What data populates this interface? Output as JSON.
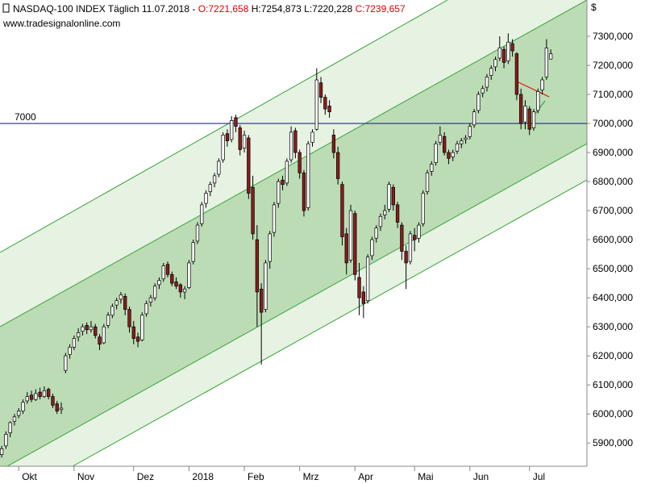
{
  "chart_data": {
    "type": "candlestick",
    "title": "NASDAQ-100 INDEX Täglich  11.07.2018 -",
    "ohlc_labels": [
      "O:7221,658",
      "H:7254,873",
      "L:7220,228",
      "C:7239,657"
    ],
    "source": "www.tradesignalonline.com",
    "currency": "$",
    "hline": 7000,
    "up_color": "#ffffff",
    "down_color": "#8b1c1c",
    "xlim": [
      -0.4,
      137.5
    ],
    "xticks": [
      {
        "value": 4,
        "label": "Okt"
      },
      {
        "value": 17,
        "label": "Nov"
      },
      {
        "value": 31,
        "label": "Dez"
      },
      {
        "value": 44,
        "label": "2018"
      },
      {
        "value": 57,
        "label": "Feb"
      },
      {
        "value": 70,
        "label": "Mrz"
      },
      {
        "value": 83,
        "label": "Apr"
      },
      {
        "value": 97,
        "label": "Mai"
      },
      {
        "value": 110,
        "label": "Jun"
      },
      {
        "value": 124,
        "label": "Jul"
      }
    ],
    "ylim": [
      5820,
      7425
    ],
    "yticks": [
      {
        "value": 5900,
        "label": "5900,000"
      },
      {
        "value": 6000,
        "label": "6000,000"
      },
      {
        "value": 6100,
        "label": "6100,000"
      },
      {
        "value": 6200,
        "label": "6200,000"
      },
      {
        "value": 6300,
        "label": "6300,000"
      },
      {
        "value": 6400,
        "label": "6400,000"
      },
      {
        "value": 6500,
        "label": "6500,000"
      },
      {
        "value": 6600,
        "label": "6600,000"
      },
      {
        "value": 6700,
        "label": "6700,000"
      },
      {
        "value": 6800,
        "label": "6800,000"
      },
      {
        "value": 6900,
        "label": "6900,000"
      },
      {
        "value": 7000,
        "label": "7000,000"
      },
      {
        "value": 7100,
        "label": "7100,000"
      },
      {
        "value": 7200,
        "label": "7200,000"
      },
      {
        "value": 7300,
        "label": "7300,000"
      }
    ],
    "open": [
      5860,
      5890,
      5935,
      5975,
      5995,
      6010,
      6045,
      6065,
      6050,
      6075,
      6060,
      6085,
      6060,
      6035,
      6015,
      6150,
      6205,
      6230,
      6265,
      6285,
      6305,
      6290,
      6300,
      6265,
      6245,
      6305,
      6340,
      6375,
      6395,
      6405,
      6360,
      6300,
      6265,
      6255,
      6345,
      6385,
      6400,
      6445,
      6465,
      6515,
      6480,
      6455,
      6445,
      6420,
      6435,
      6525,
      6595,
      6655,
      6725,
      6765,
      6795,
      6825,
      6875,
      6965,
      6945,
      7020,
      6985,
      6915,
      6950,
      6780,
      6600,
      6430,
      6360,
      6525,
      6625,
      6725,
      6805,
      6795,
      6875,
      6975,
      6900,
      6830,
      6710,
      6935,
      6980,
      7140,
      7090,
      7060,
      6960,
      6900,
      6790,
      6620,
      6530,
      6690,
      6470,
      6420,
      6390,
      6545,
      6605,
      6645,
      6685,
      6705,
      6780,
      6720,
      6650,
      6560,
      6525,
      6615,
      6605,
      6655,
      6765,
      6835,
      6865,
      6935,
      6955,
      6900,
      6885,
      6905,
      6930,
      6945,
      6955,
      6995,
      7045,
      7105,
      7125,
      7165,
      7195,
      7225,
      7255,
      7215,
      7275,
      7240,
      7100,
      7005,
      7050,
      6985,
      7045,
      7115,
      7160,
      7221.658
    ],
    "high": [
      5890,
      5940,
      5975,
      6000,
      6020,
      6050,
      6075,
      6080,
      6085,
      6090,
      6095,
      6090,
      6070,
      6045,
      6040,
      6210,
      6240,
      6270,
      6295,
      6310,
      6315,
      6320,
      6310,
      6275,
      6310,
      6350,
      6380,
      6400,
      6420,
      6415,
      6370,
      6320,
      6280,
      6350,
      6390,
      6410,
      6450,
      6470,
      6520,
      6525,
      6490,
      6470,
      6450,
      6440,
      6530,
      6600,
      6660,
      6730,
      6770,
      6800,
      6830,
      6880,
      6970,
      6980,
      7025,
      7030,
      6995,
      6975,
      6960,
      6820,
      6650,
      6450,
      6530,
      6630,
      6730,
      6810,
      6820,
      6880,
      6990,
      6985,
      6910,
      6840,
      6940,
      6980,
      7190,
      7160,
      7100,
      7080,
      6980,
      6920,
      6800,
      6640,
      6720,
      6700,
      6520,
      6440,
      6550,
      6610,
      6650,
      6690,
      6720,
      6800,
      6790,
      6730,
      6660,
      6580,
      6630,
      6640,
      6660,
      6770,
      6840,
      6870,
      6940,
      6990,
      6970,
      6910,
      6910,
      6940,
      6950,
      6960,
      7000,
      7050,
      7110,
      7130,
      7170,
      7200,
      7230,
      7300,
      7265,
      7310,
      7290,
      7245,
      7120,
      7080,
      7060,
      7050,
      7120,
      7160,
      7290,
      7254.873
    ],
    "low": [
      5850,
      5880,
      5920,
      5960,
      5985,
      6000,
      6035,
      6040,
      6045,
      6050,
      6055,
      6050,
      6020,
      6000,
      6000,
      6140,
      6190,
      6220,
      6250,
      6270,
      6275,
      6280,
      6260,
      6220,
      6240,
      6295,
      6330,
      6360,
      6380,
      6340,
      6280,
      6240,
      6230,
      6250,
      6335,
      6370,
      6390,
      6430,
      6455,
      6470,
      6440,
      6430,
      6400,
      6395,
      6430,
      6515,
      6585,
      6645,
      6710,
      6750,
      6780,
      6815,
      6865,
      6920,
      6935,
      6970,
      6890,
      6900,
      6740,
      6600,
      6300,
      6170,
      6350,
      6500,
      6610,
      6710,
      6770,
      6785,
      6865,
      6880,
      6810,
      6680,
      6700,
      6920,
      6975,
      7070,
      7030,
      7020,
      6880,
      6790,
      6580,
      6480,
      6520,
      6460,
      6340,
      6330,
      6380,
      6530,
      6590,
      6630,
      6670,
      6695,
      6700,
      6640,
      6530,
      6430,
      6515,
      6560,
      6590,
      6645,
      6755,
      6820,
      6855,
      6925,
      6890,
      6860,
      6870,
      6895,
      6915,
      6930,
      6945,
      6985,
      7035,
      7090,
      7110,
      7150,
      7180,
      7215,
      7190,
      7205,
      7230,
      7080,
      6980,
      6980,
      6960,
      6975,
      7035,
      7100,
      7150,
      7220.228
    ],
    "close": [
      5880,
      5930,
      5970,
      5990,
      6010,
      6040,
      6060,
      6050,
      6070,
      6060,
      6080,
      6060,
      6030,
      6010,
      6020,
      6200,
      6230,
      6260,
      6280,
      6300,
      6290,
      6300,
      6270,
      6240,
      6300,
      6340,
      6370,
      6390,
      6410,
      6360,
      6300,
      6260,
      6250,
      6340,
      6380,
      6400,
      6440,
      6460,
      6510,
      6480,
      6450,
      6440,
      6420,
      6430,
      6520,
      6590,
      6650,
      6720,
      6760,
      6790,
      6820,
      6870,
      6960,
      6940,
      7010,
      6990,
      6910,
      6960,
      6760,
      6620,
      6420,
      6350,
      6520,
      6620,
      6720,
      6800,
      6790,
      6870,
      6970,
      6900,
      6830,
      6700,
      6930,
      6970,
      7150,
      7090,
      7050,
      7040,
      6900,
      6810,
      6610,
      6520,
      6700,
      6480,
      6400,
      6380,
      6540,
      6600,
      6640,
      6680,
      6700,
      6790,
      6720,
      6660,
      6560,
      6520,
      6620,
      6600,
      6650,
      6760,
      6830,
      6860,
      6930,
      6960,
      6900,
      6880,
      6900,
      6930,
      6940,
      6950,
      6990,
      7040,
      7100,
      7120,
      7160,
      7190,
      7220,
      7260,
      7210,
      7280,
      7250,
      7100,
      7000,
      7060,
      6980,
      7040,
      7110,
      7150,
      7260,
      7239.657
    ]
  }
}
